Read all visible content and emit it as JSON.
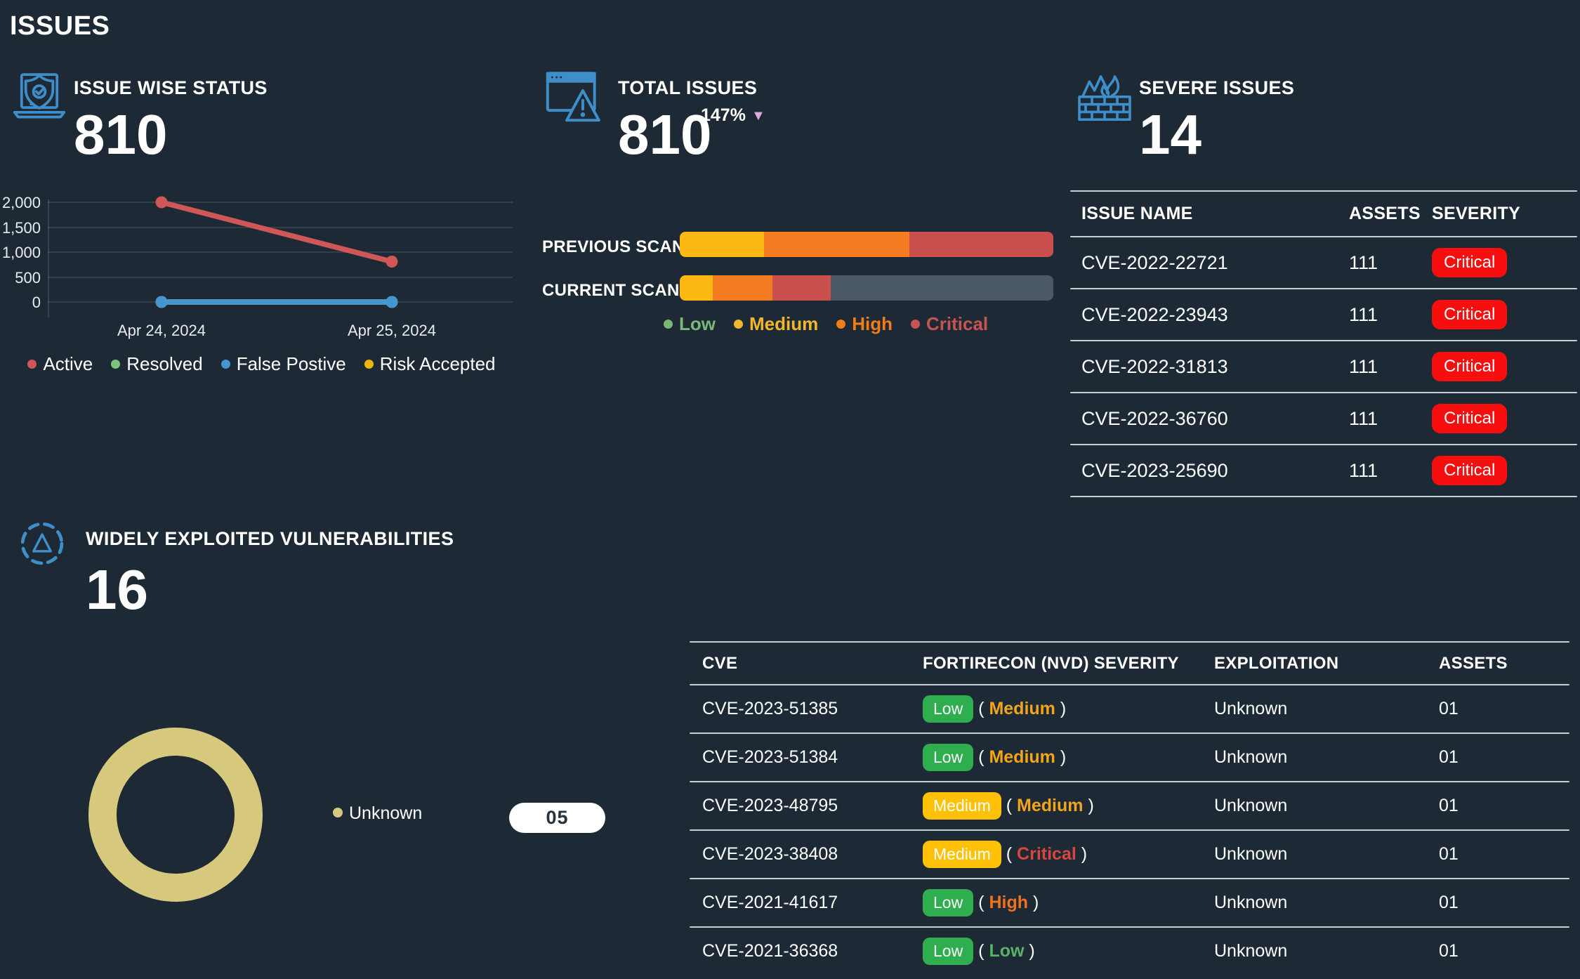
{
  "page_title": "ISSUES",
  "colors": {
    "background": "#1d2934",
    "accent_icon_blue": "#3e8fc9",
    "divider": "#c7ced4",
    "critical_badge": "#f70f0f",
    "low_badge": "#2eae4e",
    "medium_badge": "#ffc107",
    "delta_triangle": "#d9aede",
    "bar_track": "#4b5865"
  },
  "issue_wise_status": {
    "icon": "laptop-shield-icon",
    "title": "ISSUE WISE STATUS",
    "count": "810",
    "chart_data": {
      "type": "line",
      "categories": [
        "Apr 24, 2024",
        "Apr 25, 2024"
      ],
      "series": [
        {
          "name": "Active",
          "color": "#d05757",
          "values": [
            2000,
            810
          ]
        },
        {
          "name": "Resolved",
          "color": "#7cc47c",
          "values": [
            0,
            0
          ]
        },
        {
          "name": "False Postive",
          "color": "#4596d1",
          "values": [
            0,
            0
          ]
        },
        {
          "name": "Risk Accepted",
          "color": "#f0b410",
          "values": [
            0,
            0
          ]
        }
      ],
      "draw_order": [
        3,
        1,
        2,
        0
      ],
      "ylim": [
        0,
        2000
      ],
      "yticks": [
        "2,000",
        "1,500",
        "1,000",
        "500",
        "0"
      ],
      "grid": true,
      "legend_position": "bottom"
    }
  },
  "total_issues": {
    "icon": "browser-warning-icon",
    "title": "TOTAL ISSUES",
    "count": "810",
    "delta": "147%",
    "delta_direction": "down",
    "chart_data": {
      "type": "stacked-bar",
      "bar_max": 2000,
      "rows": [
        {
          "label": "PREVIOUS SCAN",
          "segments": [
            {
              "name": "Medium",
              "value": 450,
              "color": "#fdb813"
            },
            {
              "name": "High",
              "value": 780,
              "color": "#f47c20"
            },
            {
              "name": "Critical",
              "value": 770,
              "color": "#c9504c"
            }
          ]
        },
        {
          "label": "CURRENT SCAN",
          "segments": [
            {
              "name": "Medium",
              "value": 176,
              "color": "#fdb813"
            },
            {
              "name": "High",
              "value": 320,
              "color": "#f47c20"
            },
            {
              "name": "Critical",
              "value": 314,
              "color": "#c9504c"
            }
          ]
        }
      ],
      "legend": [
        {
          "label": "Low",
          "color": "#79b973"
        },
        {
          "label": "Medium",
          "color": "#f2b52d"
        },
        {
          "label": "High",
          "color": "#ef7d1a"
        },
        {
          "label": "Critical",
          "color": "#c65552"
        }
      ]
    }
  },
  "severe_issues": {
    "icon": "firewall-fire-icon",
    "title": "SEVERE ISSUES",
    "count": "14",
    "table": {
      "headers": [
        "ISSUE NAME",
        "ASSETS",
        "SEVERITY"
      ],
      "rows": [
        {
          "name": "CVE-2022-22721",
          "assets": "111",
          "severity": "Critical"
        },
        {
          "name": "CVE-2022-23943",
          "assets": "111",
          "severity": "Critical"
        },
        {
          "name": "CVE-2022-31813",
          "assets": "111",
          "severity": "Critical"
        },
        {
          "name": "CVE-2022-36760",
          "assets": "111",
          "severity": "Critical"
        },
        {
          "name": "CVE-2023-25690",
          "assets": "111",
          "severity": "Critical"
        }
      ]
    }
  },
  "widely_exploited": {
    "icon": "dashed-circle-triangle-icon",
    "title": "WIDELY EXPLOITED VULNERABILITIES",
    "count": "16",
    "chart_data": {
      "type": "donut",
      "slices": [
        {
          "label": "Unknown",
          "value": 5,
          "color": "#d6c97e"
        }
      ]
    },
    "legend_label": "Unknown",
    "count_pill": "05",
    "table": {
      "headers": [
        "CVE",
        "FORTIRECON (NVD) SEVERITY",
        "EXPLOITATION",
        "ASSETS"
      ],
      "rows": [
        {
          "cve": "CVE-2023-51385",
          "badge": "Low",
          "badge_bg": "#2eae4e",
          "nvd": "Medium",
          "nvd_color": "#f2a51a",
          "open_paren": "(",
          "close_paren": ")",
          "exploitation": "Unknown",
          "assets": "01"
        },
        {
          "cve": "CVE-2023-51384",
          "badge": "Low",
          "badge_bg": "#2eae4e",
          "nvd": "Medium",
          "nvd_color": "#f2a51a",
          "open_paren": "(",
          "close_paren": ")",
          "exploitation": "Unknown",
          "assets": "01"
        },
        {
          "cve": "CVE-2023-48795",
          "badge": "Medium",
          "badge_bg": "#ffc107",
          "nvd": "Medium",
          "nvd_color": "#f2a51a",
          "open_paren": "(",
          "close_paren": ")",
          "exploitation": "Unknown",
          "assets": "01"
        },
        {
          "cve": "CVE-2023-38408",
          "badge": "Medium",
          "badge_bg": "#ffc107",
          "nvd": "Critical",
          "nvd_color": "#d9453f",
          "open_paren": "(",
          "close_paren": ")",
          "exploitation": "Unknown",
          "assets": "01"
        },
        {
          "cve": "CVE-2021-41617",
          "badge": "Low",
          "badge_bg": "#2eae4e",
          "nvd": "High",
          "nvd_color": "#f2711c",
          "open_paren": "(",
          "close_paren": ")",
          "exploitation": "Unknown",
          "assets": "01"
        },
        {
          "cve": "CVE-2021-36368",
          "badge": "Low",
          "badge_bg": "#2eae4e",
          "nvd": "Low",
          "nvd_color": "#58b368",
          "open_paren": "(",
          "close_paren": ")",
          "exploitation": "Unknown",
          "assets": "01"
        }
      ]
    }
  }
}
